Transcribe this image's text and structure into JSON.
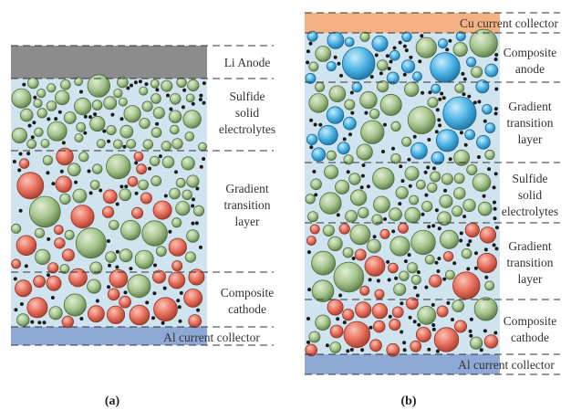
{
  "panels": [
    {
      "caption": "(a)",
      "layers": [
        {
          "name": "anode",
          "label": [
            "Li Anode"
          ],
          "color": "#8c8c8c"
        },
        {
          "name": "electrolyte",
          "label": [
            "Sulfide",
            "solid",
            "electrolytes"
          ],
          "color": "#cfe4ef"
        },
        {
          "name": "gradient",
          "label": [
            "Gradient",
            "transition",
            "layer"
          ],
          "color": "#cfe4ef"
        },
        {
          "name": "cathode",
          "label": [
            "Composite",
            "cathode"
          ],
          "color": "#cfe4ef"
        },
        {
          "name": "collector",
          "label": [
            "Al current collector"
          ],
          "color": "#8fa9d6"
        }
      ]
    },
    {
      "caption": "(b)",
      "layers": [
        {
          "name": "cu-collector",
          "label": [
            "Cu current collector"
          ],
          "color": "#f4b183"
        },
        {
          "name": "anode",
          "label": [
            "Composite",
            "anode"
          ],
          "color": "#cfe4ef"
        },
        {
          "name": "gradient-top",
          "label": [
            "Gradient",
            "transition",
            "layer"
          ],
          "color": "#cfe4ef"
        },
        {
          "name": "electrolyte",
          "label": [
            "Sulfide",
            "solid",
            "electrolytes"
          ],
          "color": "#cfe4ef"
        },
        {
          "name": "gradient-bottom",
          "label": [
            "Gradient",
            "transition",
            "layer"
          ],
          "color": "#cfe4ef"
        },
        {
          "name": "cathode",
          "label": [
            "Composite",
            "cathode"
          ],
          "color": "#cfe4ef"
        },
        {
          "name": "al-collector",
          "label": [
            "Al current collector"
          ],
          "color": "#8fa9d6"
        }
      ]
    }
  ],
  "particle_colors": {
    "sulfide": "#9fbf86",
    "cathode": "#e8705f",
    "anode": "#4fb6e8",
    "conductive": "#1a1a1a"
  }
}
